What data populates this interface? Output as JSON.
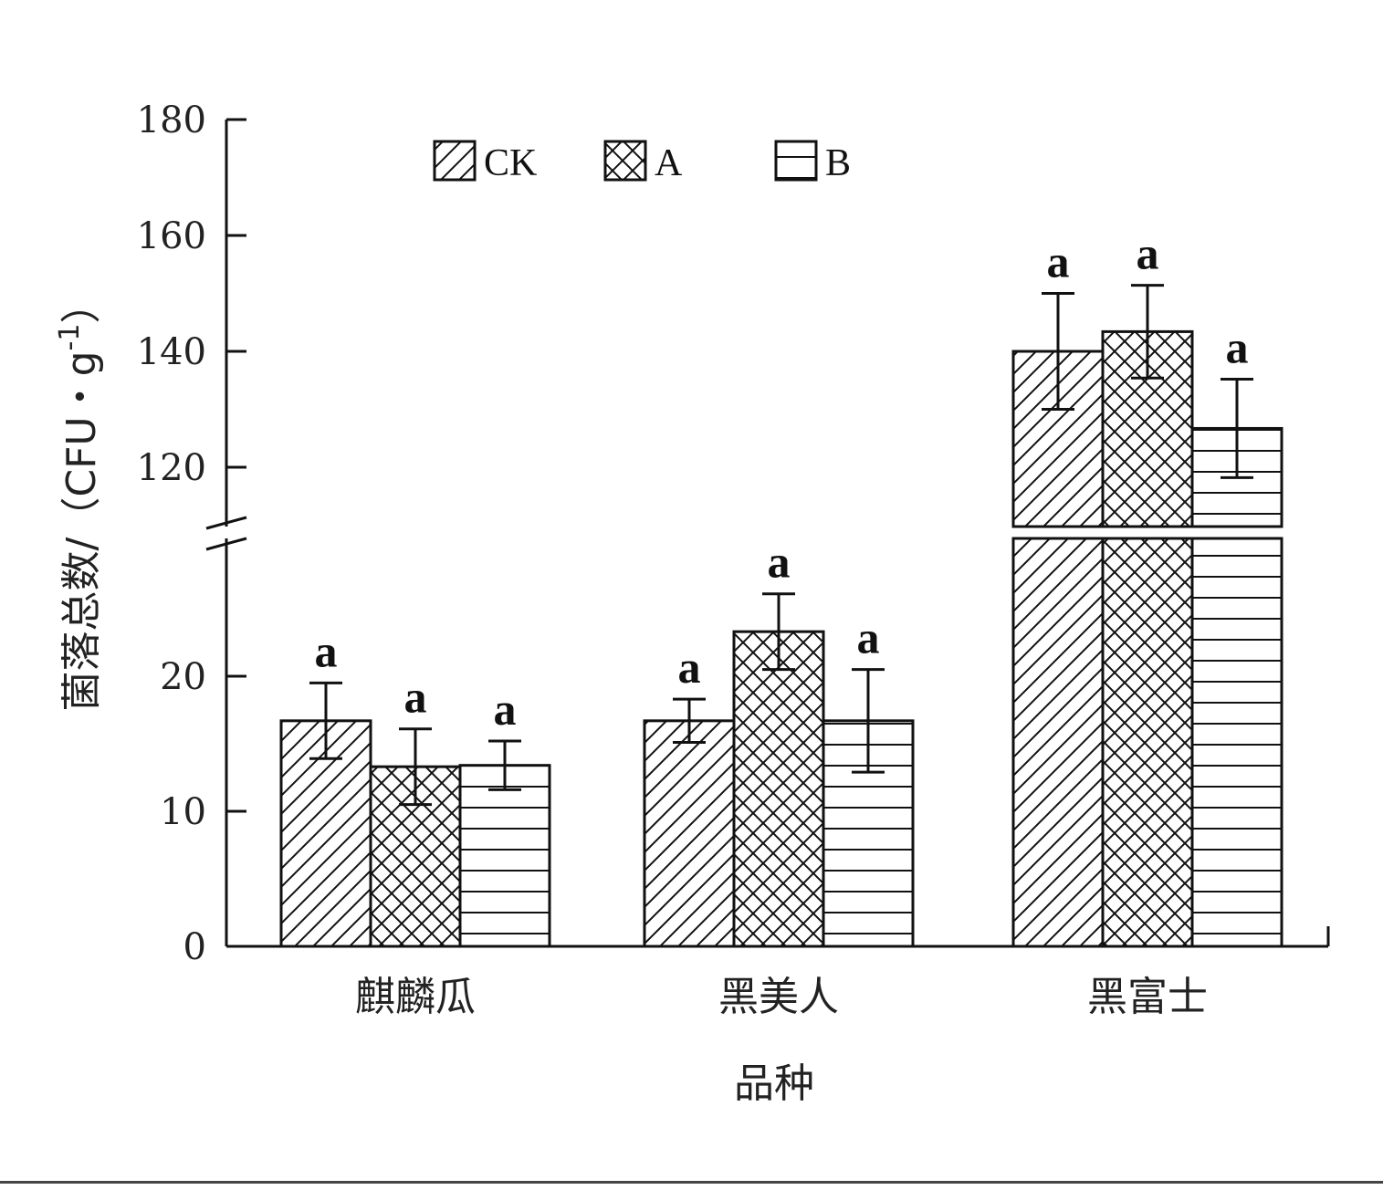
{
  "chart_data": {
    "type": "bar",
    "xlabel": "品种",
    "ylabel": "菌落总数/（CFU・g",
    "ylabel_sup": "-1",
    "ylabel_close": "）",
    "categories": [
      "麒麟瓜",
      "黑美人",
      "黑富士"
    ],
    "series": [
      {
        "name": "CK",
        "pattern": "diagonal",
        "values": [
          16.7,
          16.7,
          140.0
        ],
        "errors": [
          2.8,
          1.6,
          10.0
        ],
        "labels": [
          "a",
          "a",
          "a"
        ]
      },
      {
        "name": "A",
        "pattern": "crosshatch",
        "values": [
          13.3,
          23.3,
          143.4
        ],
        "errors": [
          2.8,
          2.8,
          8.0
        ],
        "labels": [
          "a",
          "a",
          "a"
        ]
      },
      {
        "name": "B",
        "pattern": "horizontal",
        "values": [
          13.4,
          16.7,
          126.7
        ],
        "errors": [
          1.8,
          3.8,
          8.5
        ],
        "labels": [
          "a",
          "a",
          "a"
        ]
      }
    ],
    "y_axis": {
      "broken": true,
      "lower_range": [
        0,
        30
      ],
      "lower_ticks": [
        0,
        10,
        20
      ],
      "upper_range": [
        110,
        180
      ],
      "upper_ticks": [
        120,
        140,
        160,
        180
      ]
    },
    "legend_position": "top-center",
    "colors": {
      "fill": "#ffffff",
      "stroke": "#111111"
    }
  }
}
